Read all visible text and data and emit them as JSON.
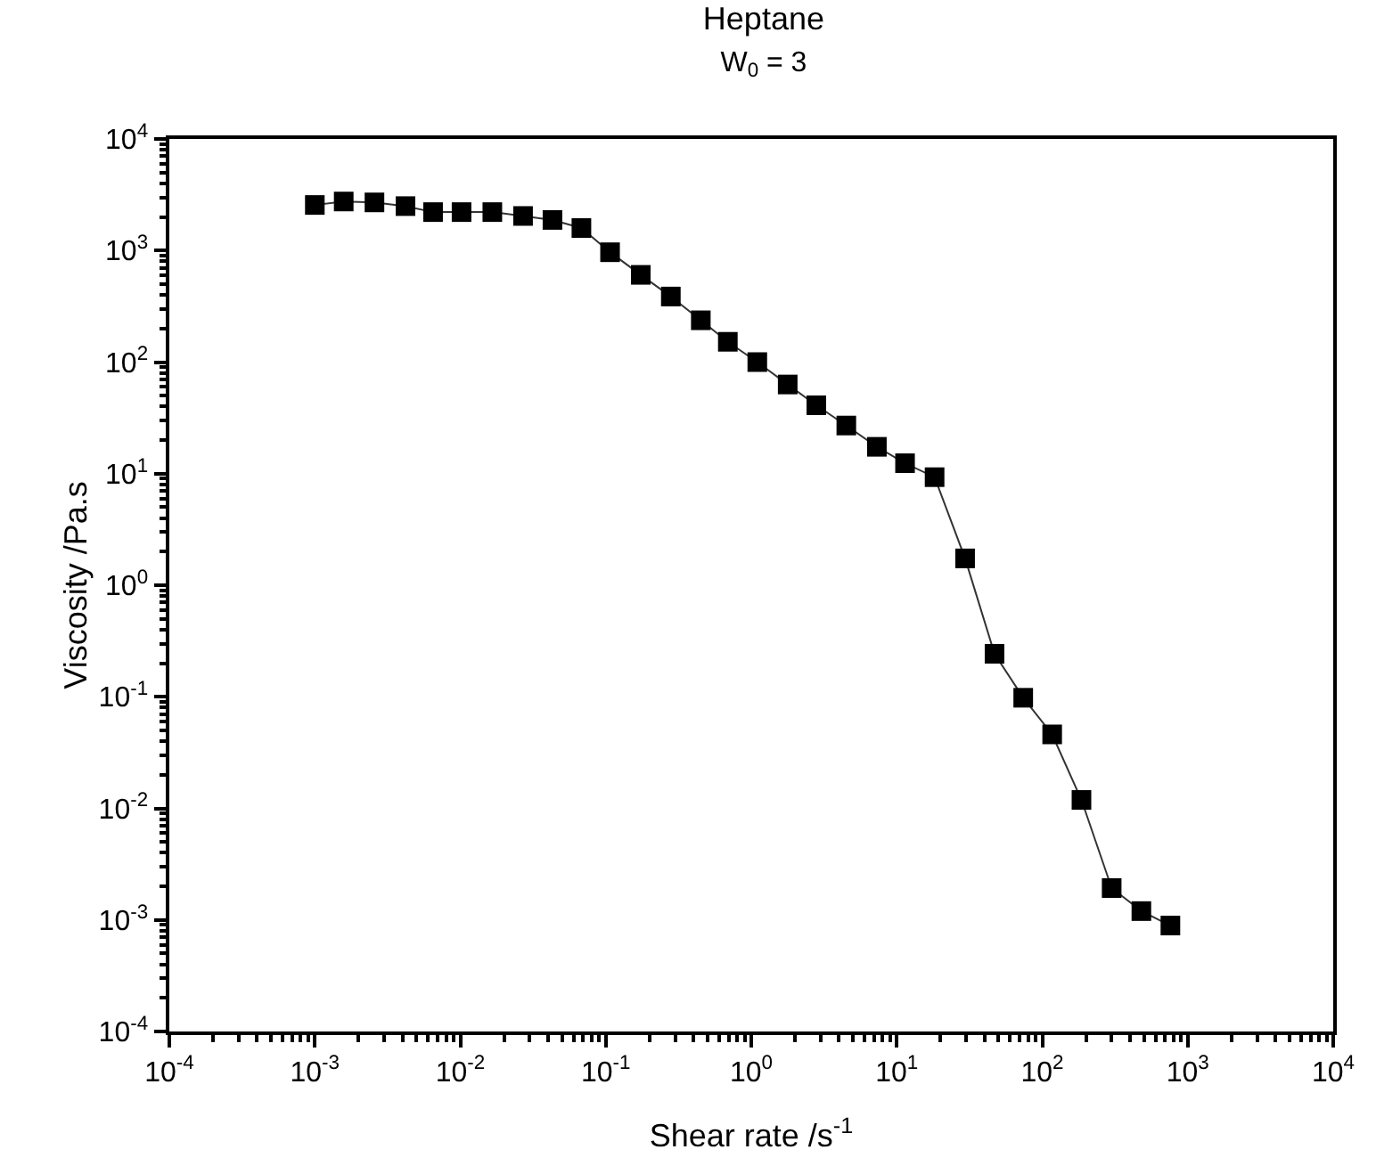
{
  "chart_data": {
    "type": "line",
    "title": "Heptane",
    "subtitle": "W$_{0}$ = 3",
    "xlabel": "Shear rate /s$^{-1}$",
    "ylabel": "Viscosity /Pa.s",
    "log": "xy",
    "grid": false,
    "marker": "square",
    "line_style": "solid",
    "xlim": [
      0.0001,
      10000
    ],
    "ylim": [
      0.0001,
      10000
    ],
    "xticks": [
      {
        "value": 0.0001,
        "label": "10$^{-4}$"
      },
      {
        "value": 0.001,
        "label": "10$^{-3}$"
      },
      {
        "value": 0.01,
        "label": "10$^{-2}$"
      },
      {
        "value": 0.1,
        "label": "10$^{-1}$"
      },
      {
        "value": 1,
        "label": "10$^{0}$"
      },
      {
        "value": 10,
        "label": "10$^{1}$"
      },
      {
        "value": 100,
        "label": "10$^{2}$"
      },
      {
        "value": 1000,
        "label": "10$^{3}$"
      },
      {
        "value": 10000,
        "label": "10$^{4}$"
      }
    ],
    "yticks": [
      {
        "value": 0.0001,
        "label": "10$^{-4}$"
      },
      {
        "value": 0.001,
        "label": "10$^{-3}$"
      },
      {
        "value": 0.01,
        "label": "10$^{-2}$"
      },
      {
        "value": 0.1,
        "label": "10$^{-1}$"
      },
      {
        "value": 1,
        "label": "10$^{0}$"
      },
      {
        "value": 10,
        "label": "10$^{1}$"
      },
      {
        "value": 100,
        "label": "10$^{2}$"
      },
      {
        "value": 1000,
        "label": "10$^{3}$"
      },
      {
        "value": 10000,
        "label": "10$^{4}$"
      }
    ],
    "x": [
      0.001,
      0.00158,
      0.00257,
      0.0042,
      0.0065,
      0.0102,
      0.0166,
      0.027,
      0.043,
      0.068,
      0.107,
      0.174,
      0.28,
      0.45,
      0.69,
      1.1,
      1.78,
      2.8,
      4.5,
      7.3,
      11.4,
      18.2,
      29.5,
      47,
      74,
      117,
      186,
      300,
      480,
      760
    ],
    "series": [
      {
        "color": "#000000",
        "values": [
          2560,
          2750,
          2700,
          2500,
          2210,
          2210,
          2210,
          2040,
          1880,
          1590,
          965,
          605,
          387,
          237,
          152,
          100,
          63,
          41,
          27,
          17.4,
          12.4,
          9.3,
          1.74,
          0.243,
          0.098,
          0.046,
          0.0119,
          0.00193,
          0.0012,
          0.00089
        ]
      }
    ]
  }
}
